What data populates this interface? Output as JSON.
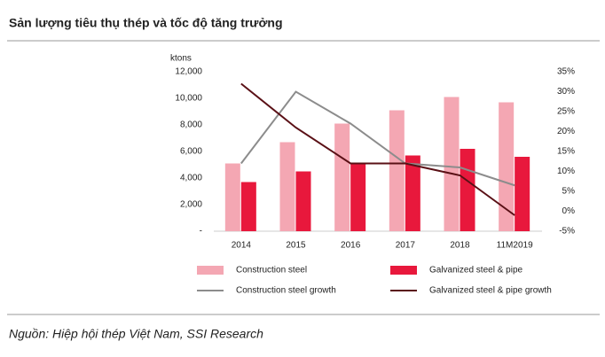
{
  "chart_data": {
    "type": "bar",
    "title": "Sản lượng tiêu thụ thép và tốc độ tăng trưởng",
    "y_label": "ktons",
    "categories": [
      "2014",
      "2015",
      "2016",
      "2017",
      "2018",
      "11M2019"
    ],
    "series": [
      {
        "name": "Construction steel",
        "type": "bar",
        "color": "#f4a7b3",
        "values": [
          5100,
          6700,
          8100,
          9100,
          10100,
          9700
        ]
      },
      {
        "name": "Galvanized steel & pipe",
        "type": "bar",
        "color": "#e8183c",
        "values": [
          3700,
          4500,
          5100,
          5700,
          6200,
          5600
        ]
      },
      {
        "name": "Construction steel growth",
        "type": "line",
        "axis": "y2",
        "color": "#8c8c8c",
        "values": [
          12,
          30,
          22,
          12,
          11,
          6.5
        ]
      },
      {
        "name": "Galvanized steel & pipe growth",
        "type": "line",
        "axis": "y2",
        "color": "#5a1016",
        "values": [
          32,
          21,
          12,
          12,
          9,
          -1
        ]
      }
    ],
    "ylim": [
      0,
      12000
    ],
    "yticks": [
      {
        "value": 0,
        "label": "-"
      },
      {
        "value": 2000,
        "label": "2,000"
      },
      {
        "value": 4000,
        "label": "4,000"
      },
      {
        "value": 6000,
        "label": "6,000"
      },
      {
        "value": 8000,
        "label": "8,000"
      },
      {
        "value": 10000,
        "label": "10,000"
      },
      {
        "value": 12000,
        "label": "12,000"
      }
    ],
    "y2lim": [
      -5,
      35
    ],
    "y2ticks": [
      {
        "value": -5,
        "label": "-5%"
      },
      {
        "value": 0,
        "label": "0%"
      },
      {
        "value": 5,
        "label": "5%"
      },
      {
        "value": 10,
        "label": "10%"
      },
      {
        "value": 15,
        "label": "15%"
      },
      {
        "value": 20,
        "label": "20%"
      },
      {
        "value": 25,
        "label": "25%"
      },
      {
        "value": 30,
        "label": "30%"
      },
      {
        "value": 35,
        "label": "35%"
      }
    ],
    "grid": false,
    "source": "Nguồn: Hiệp hội thép Việt Nam, SSI Research"
  }
}
